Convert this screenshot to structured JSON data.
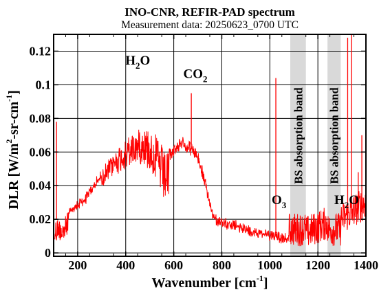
{
  "chart_data": {
    "type": "line",
    "title": "INO-CNR, REFIR-PAD spectrum",
    "subtitle": "Measurement data: 20250623_0700 UTC",
    "xlabel": {
      "main": "Wavenumber [cm",
      "sup": "-1",
      "close": "]"
    },
    "ylabel": {
      "p1": "DLR [W/m",
      "sup1": "2",
      "p2": "-sr-cm",
      "sup2": "-1",
      "p3": "]"
    },
    "xlim": [
      100,
      1400
    ],
    "ylim": [
      -0.002,
      0.13
    ],
    "x_ticks": [
      200,
      400,
      600,
      800,
      1000,
      1200,
      1400
    ],
    "y_ticks": [
      0.0,
      0.02,
      0.04,
      0.06,
      0.08,
      0.1,
      0.12
    ],
    "y_tick_labels": [
      "0",
      "0.02",
      "0.04",
      "0.06",
      "0.08",
      "0.1",
      "0.12"
    ],
    "grid": true,
    "line_color": "#ff0000",
    "band_color": "#d9d9d9",
    "shaded_bands": [
      {
        "x0": 1085,
        "x1": 1150,
        "label": "BS absorption band"
      },
      {
        "x0": 1240,
        "x1": 1295,
        "label": "BS absorption band"
      }
    ],
    "annotations": [
      {
        "text": "H",
        "sub": "2",
        "tail": "O",
        "x": 450,
        "y": 0.112
      },
      {
        "text": "CO",
        "sub": "2",
        "tail": "",
        "x": 690,
        "y": 0.104
      },
      {
        "text": "O",
        "sub": "3",
        "tail": "",
        "x": 1038,
        "y": 0.029
      },
      {
        "text": "H",
        "sub": "2",
        "tail": "O",
        "x": 1320,
        "y": 0.029
      }
    ],
    "series": [
      {
        "envelope": {
          "x": [
            105,
            120,
            140,
            160,
            180,
            200,
            230,
            260,
            300,
            340,
            380,
            420,
            460,
            500,
            530,
            560,
            590,
            610,
            640,
            670,
            700,
            720,
            740,
            760,
            780,
            800,
            830,
            860,
            900,
            950,
            1000,
            1020,
            1050,
            1080
          ],
          "y": [
            0.018,
            0.022,
            0.02,
            0.024,
            0.028,
            0.03,
            0.034,
            0.04,
            0.048,
            0.058,
            0.064,
            0.07,
            0.075,
            0.074,
            0.07,
            0.06,
            0.062,
            0.066,
            0.068,
            0.065,
            0.06,
            0.05,
            0.038,
            0.026,
            0.021,
            0.02,
            0.019,
            0.018,
            0.016,
            0.014,
            0.013,
            0.012,
            0.011,
            0.01
          ]
        },
        "spikes": [
          {
            "x": 112,
            "y": 0.078
          },
          {
            "x": 1025,
            "y": 0.104
          },
          {
            "x": 673,
            "y": 0.095
          },
          {
            "x": 1340,
            "y": 0.13
          },
          {
            "x": 1324,
            "y": 0.128
          },
          {
            "x": 1383,
            "y": 0.07
          },
          {
            "x": 1368,
            "y": 0.048
          }
        ]
      }
    ]
  }
}
